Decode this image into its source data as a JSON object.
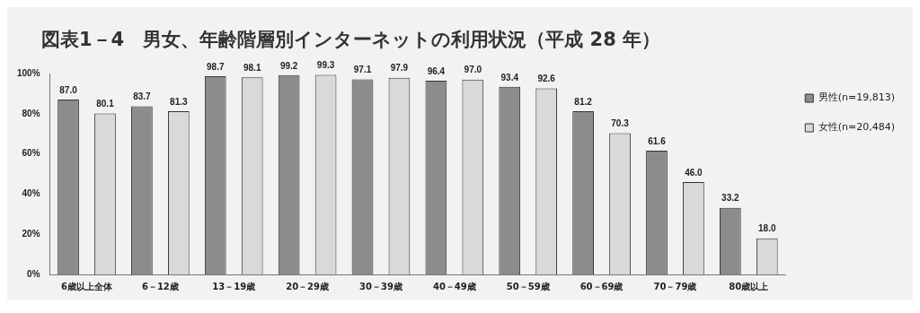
{
  "chart_data": {
    "type": "bar",
    "title": "図表1－4　男女、年齢階層別インターネットの利用状況（平成 28 年）",
    "categories": [
      "6歳以上全体",
      "6－12歳",
      "13－19歳",
      "20－29歳",
      "30－39歳",
      "40－49歳",
      "50－59歳",
      "60－69歳",
      "70－79歳",
      "80歳以上"
    ],
    "series": [
      {
        "name": "男性(n=19,813)",
        "color": "#8c8c8c",
        "values": [
          87.0,
          83.7,
          98.7,
          99.2,
          97.1,
          96.4,
          93.4,
          81.2,
          61.6,
          33.2
        ],
        "value_labels": [
          "87.0",
          "83.7",
          "98.7",
          "99.2",
          "97.1",
          "96.4",
          "93.4",
          "81.2",
          "61.6",
          "33.2"
        ]
      },
      {
        "name": "女性(n=20,484)",
        "color": "#d9d9d9",
        "values": [
          80.1,
          81.3,
          98.1,
          99.3,
          97.9,
          97.0,
          92.6,
          70.3,
          46.0,
          18.0
        ],
        "value_labels": [
          "80.1",
          "81.3",
          "98.1",
          "99.3",
          "97.9",
          "97.0",
          "92.6",
          "70.3",
          "46.0",
          "18.0"
        ]
      }
    ],
    "ylim": [
      0,
      100
    ],
    "yticks": [
      {
        "value": 0,
        "label": "0%"
      },
      {
        "value": 20,
        "label": "20%"
      },
      {
        "value": 40,
        "label": "40%"
      },
      {
        "value": 60,
        "label": "60%"
      },
      {
        "value": 80,
        "label": "80%"
      },
      {
        "value": 100,
        "label": "100%"
      }
    ],
    "grid": false,
    "legend": "right"
  }
}
